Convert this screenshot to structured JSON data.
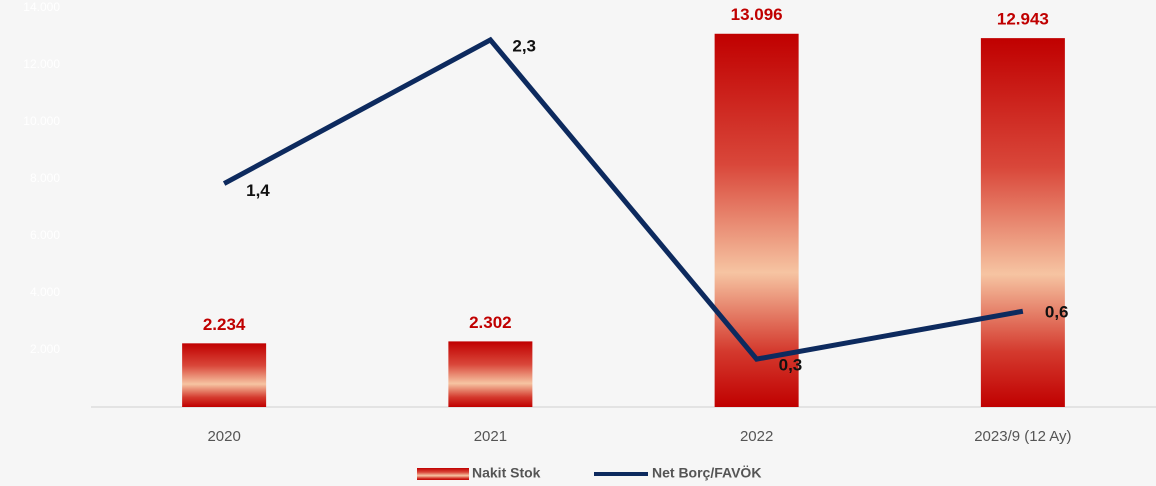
{
  "chart_data": {
    "type": "bar",
    "categories": [
      "2020",
      "2021",
      "2022",
      "2023/9 (12 Ay)"
    ],
    "series": [
      {
        "name": "Nakit Stok",
        "type": "bar",
        "color": "#c00000",
        "values": [
          2234,
          2302,
          13096,
          12943
        ],
        "value_labels": [
          "2.234",
          "2.302",
          "13.096",
          "12.943"
        ]
      },
      {
        "name": "Net Borç/FAVÖK",
        "type": "line",
        "axis": "y2",
        "color": "#0d2a5e",
        "values": [
          1.4,
          2.3,
          0.3,
          0.6
        ],
        "value_labels": [
          "1,4",
          "2,3",
          "0,3",
          "0,6"
        ]
      }
    ],
    "ylim": [
      0,
      14000
    ],
    "yticks": [
      {
        "value": 2000,
        "label": "2.000"
      },
      {
        "value": 4000,
        "label": "4.000"
      },
      {
        "value": 6000,
        "label": "6.000"
      },
      {
        "value": 8000,
        "label": "8.000"
      },
      {
        "value": 10000,
        "label": "10.000"
      },
      {
        "value": 12000,
        "label": "12.000"
      },
      {
        "value": 14000,
        "label": "14.000"
      }
    ],
    "y2lim": [
      0,
      2.5
    ],
    "legend": "bottom"
  }
}
